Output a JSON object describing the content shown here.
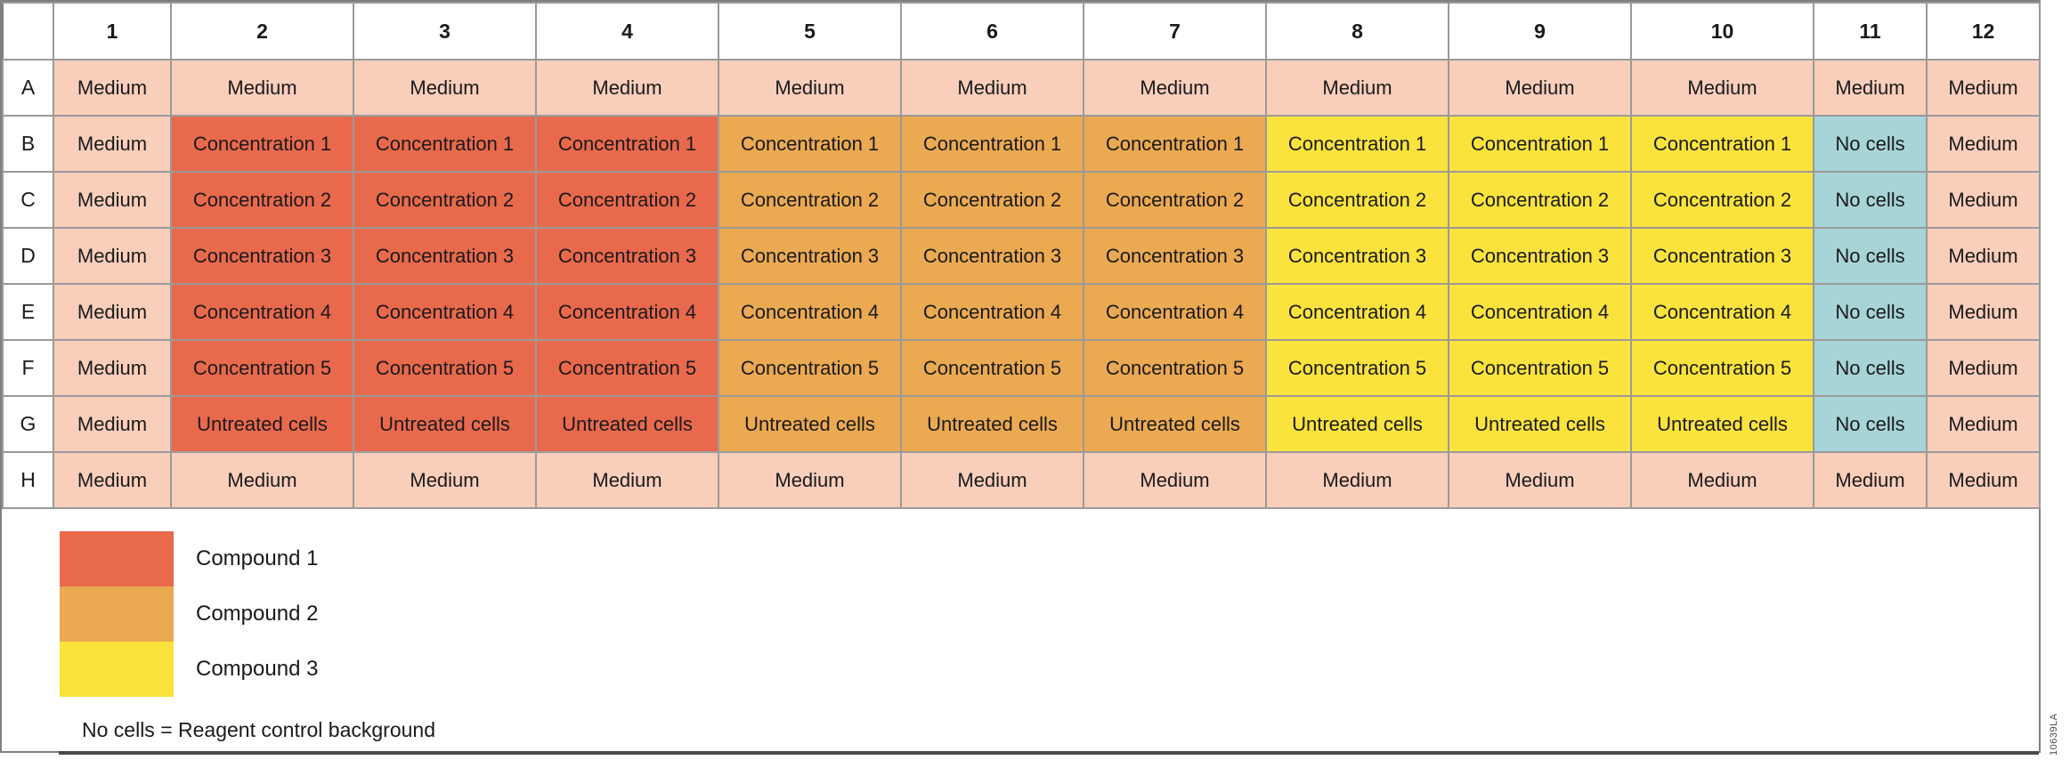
{
  "palette": {
    "medium": "#F9CEBB",
    "compound1": "#E9694D",
    "compound2": "#EBA952",
    "compound3": "#FAE33C",
    "no_cells": "#A6D4D7",
    "grid_line": "#9A9A9A",
    "frame_border": "#7F7F7F",
    "text": "#1A1A1A",
    "bottom_rule": "#4A4A4A"
  },
  "plate": {
    "column_headers": [
      "1",
      "2",
      "3",
      "4",
      "5",
      "6",
      "7",
      "8",
      "9",
      "10",
      "11",
      "12"
    ],
    "rows": [
      {
        "label": "A",
        "cells": [
          [
            "Medium",
            "medium"
          ],
          [
            "Medium",
            "medium"
          ],
          [
            "Medium",
            "medium"
          ],
          [
            "Medium",
            "medium"
          ],
          [
            "Medium",
            "medium"
          ],
          [
            "Medium",
            "medium"
          ],
          [
            "Medium",
            "medium"
          ],
          [
            "Medium",
            "medium"
          ],
          [
            "Medium",
            "medium"
          ],
          [
            "Medium",
            "medium"
          ],
          [
            "Medium",
            "medium"
          ],
          [
            "Medium",
            "medium"
          ]
        ]
      },
      {
        "label": "B",
        "cells": [
          [
            "Medium",
            "medium"
          ],
          [
            "Concentration 1",
            "compound1"
          ],
          [
            "Concentration 1",
            "compound1"
          ],
          [
            "Concentration 1",
            "compound1"
          ],
          [
            "Concentration 1",
            "compound2"
          ],
          [
            "Concentration 1",
            "compound2"
          ],
          [
            "Concentration 1",
            "compound2"
          ],
          [
            "Concentration 1",
            "compound3"
          ],
          [
            "Concentration 1",
            "compound3"
          ],
          [
            "Concentration 1",
            "compound3"
          ],
          [
            "No cells",
            "no_cells"
          ],
          [
            "Medium",
            "medium"
          ]
        ]
      },
      {
        "label": "C",
        "cells": [
          [
            "Medium",
            "medium"
          ],
          [
            "Concentration 2",
            "compound1"
          ],
          [
            "Concentration 2",
            "compound1"
          ],
          [
            "Concentration 2",
            "compound1"
          ],
          [
            "Concentration 2",
            "compound2"
          ],
          [
            "Concentration 2",
            "compound2"
          ],
          [
            "Concentration 2",
            "compound2"
          ],
          [
            "Concentration 2",
            "compound3"
          ],
          [
            "Concentration 2",
            "compound3"
          ],
          [
            "Concentration 2",
            "compound3"
          ],
          [
            "No cells",
            "no_cells"
          ],
          [
            "Medium",
            "medium"
          ]
        ]
      },
      {
        "label": "D",
        "cells": [
          [
            "Medium",
            "medium"
          ],
          [
            "Concentration 3",
            "compound1"
          ],
          [
            "Concentration 3",
            "compound1"
          ],
          [
            "Concentration 3",
            "compound1"
          ],
          [
            "Concentration 3",
            "compound2"
          ],
          [
            "Concentration 3",
            "compound2"
          ],
          [
            "Concentration 3",
            "compound2"
          ],
          [
            "Concentration 3",
            "compound3"
          ],
          [
            "Concentration 3",
            "compound3"
          ],
          [
            "Concentration 3",
            "compound3"
          ],
          [
            "No cells",
            "no_cells"
          ],
          [
            "Medium",
            "medium"
          ]
        ]
      },
      {
        "label": "E",
        "cells": [
          [
            "Medium",
            "medium"
          ],
          [
            "Concentration 4",
            "compound1"
          ],
          [
            "Concentration 4",
            "compound1"
          ],
          [
            "Concentration 4",
            "compound1"
          ],
          [
            "Concentration 4",
            "compound2"
          ],
          [
            "Concentration 4",
            "compound2"
          ],
          [
            "Concentration 4",
            "compound2"
          ],
          [
            "Concentration 4",
            "compound3"
          ],
          [
            "Concentration 4",
            "compound3"
          ],
          [
            "Concentration 4",
            "compound3"
          ],
          [
            "No cells",
            "no_cells"
          ],
          [
            "Medium",
            "medium"
          ]
        ]
      },
      {
        "label": "F",
        "cells": [
          [
            "Medium",
            "medium"
          ],
          [
            "Concentration 5",
            "compound1"
          ],
          [
            "Concentration 5",
            "compound1"
          ],
          [
            "Concentration 5",
            "compound1"
          ],
          [
            "Concentration 5",
            "compound2"
          ],
          [
            "Concentration 5",
            "compound2"
          ],
          [
            "Concentration 5",
            "compound2"
          ],
          [
            "Concentration 5",
            "compound3"
          ],
          [
            "Concentration 5",
            "compound3"
          ],
          [
            "Concentration 5",
            "compound3"
          ],
          [
            "No cells",
            "no_cells"
          ],
          [
            "Medium",
            "medium"
          ]
        ]
      },
      {
        "label": "G",
        "cells": [
          [
            "Medium",
            "medium"
          ],
          [
            "Untreated cells",
            "compound1"
          ],
          [
            "Untreated cells",
            "compound1"
          ],
          [
            "Untreated cells",
            "compound1"
          ],
          [
            "Untreated cells",
            "compound2"
          ],
          [
            "Untreated cells",
            "compound2"
          ],
          [
            "Untreated cells",
            "compound2"
          ],
          [
            "Untreated cells",
            "compound3"
          ],
          [
            "Untreated cells",
            "compound3"
          ],
          [
            "Untreated cells",
            "compound3"
          ],
          [
            "No cells",
            "no_cells"
          ],
          [
            "Medium",
            "medium"
          ]
        ]
      },
      {
        "label": "H",
        "cells": [
          [
            "Medium",
            "medium"
          ],
          [
            "Medium",
            "medium"
          ],
          [
            "Medium",
            "medium"
          ],
          [
            "Medium",
            "medium"
          ],
          [
            "Medium",
            "medium"
          ],
          [
            "Medium",
            "medium"
          ],
          [
            "Medium",
            "medium"
          ],
          [
            "Medium",
            "medium"
          ],
          [
            "Medium",
            "medium"
          ],
          [
            "Medium",
            "medium"
          ],
          [
            "Medium",
            "medium"
          ],
          [
            "Medium",
            "medium"
          ]
        ]
      }
    ]
  },
  "legend": {
    "items": [
      {
        "label": "Compound 1",
        "fill": "compound1"
      },
      {
        "label": "Compound 2",
        "fill": "compound2"
      },
      {
        "label": "Compound 3",
        "fill": "compound3"
      }
    ],
    "note": "No cells = Reagent control background"
  },
  "figure_id": "10639LA"
}
